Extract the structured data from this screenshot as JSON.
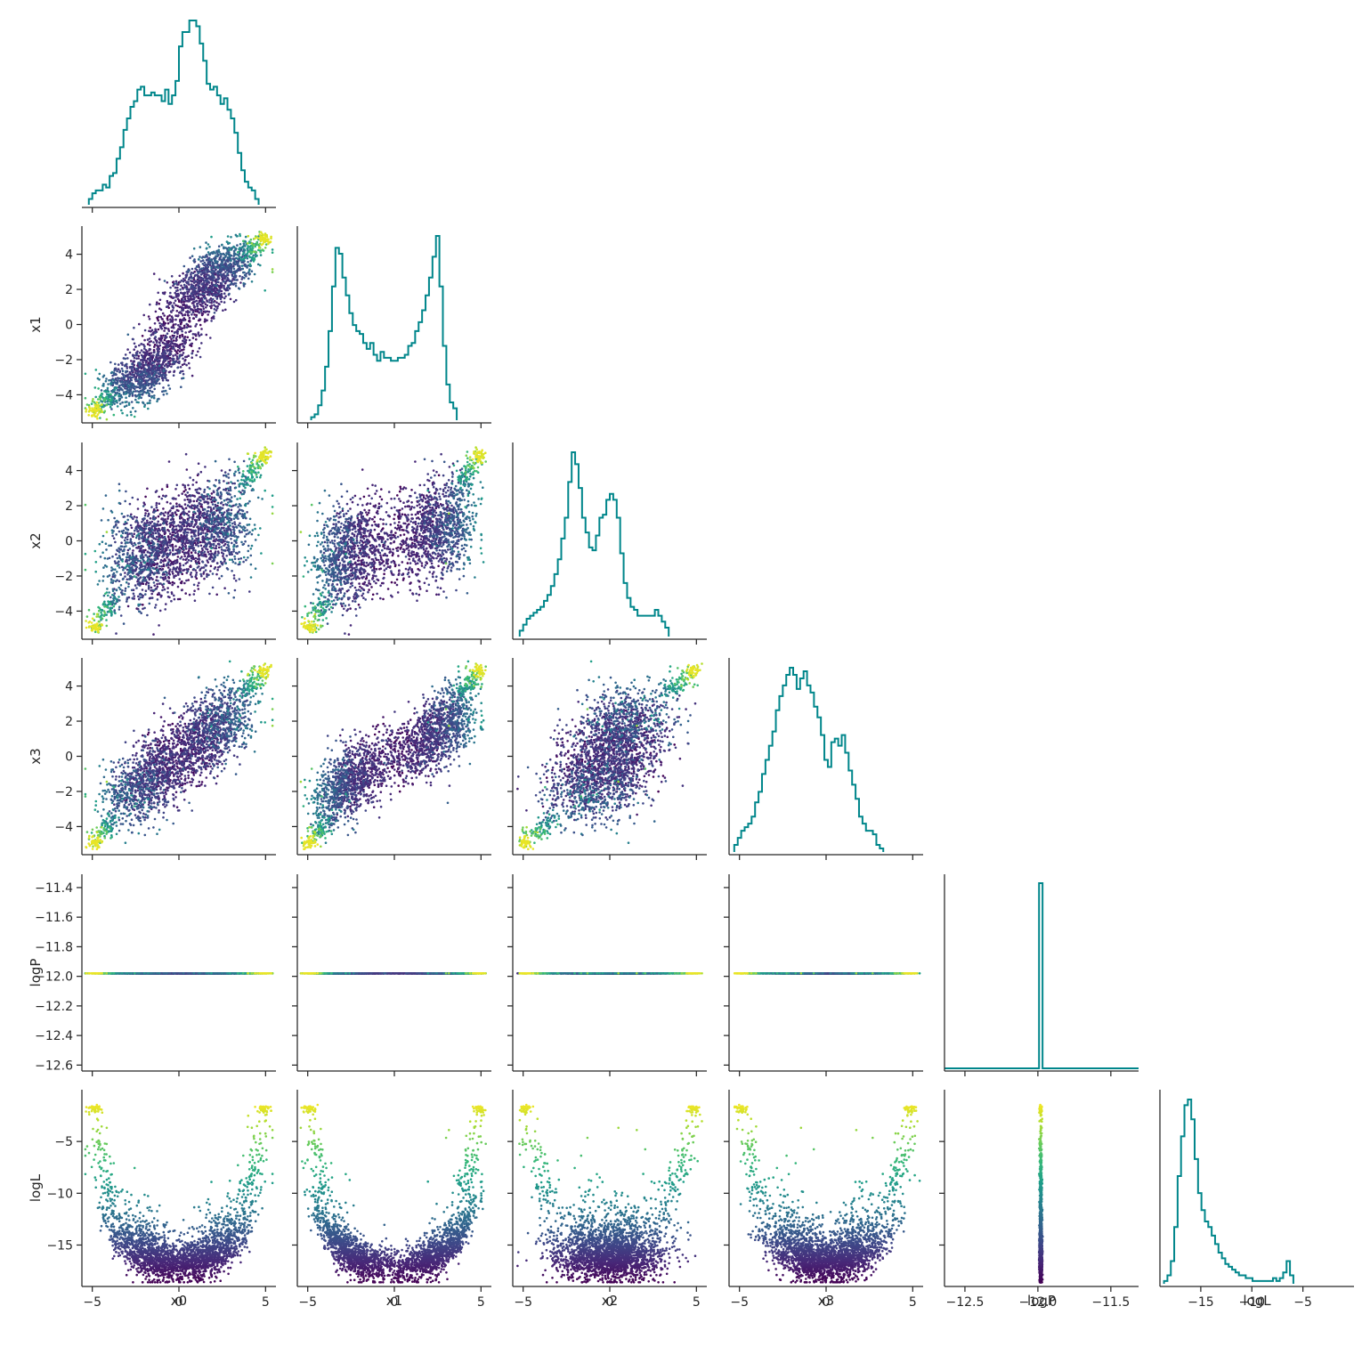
{
  "chart_data": {
    "type": "pairplot-corner",
    "variables": [
      "x0",
      "x1",
      "x2",
      "x3",
      "logP",
      "logL"
    ],
    "diagonal": "step-histogram",
    "off_diagonal": "scatter",
    "point_color_variable": "logL",
    "colormap": "viridis",
    "histogram_color": "#00868b",
    "grid": false,
    "axes": {
      "x0": {
        "range": [
          -5.6,
          5.6
        ],
        "ticks": [
          -5,
          0,
          5
        ],
        "tick_labels": [
          "−5",
          "0",
          "5"
        ]
      },
      "x1": {
        "range": [
          -5.6,
          5.6
        ],
        "ticks": [
          -4,
          -2,
          0,
          2,
          4
        ],
        "tick_labels": [
          "−4",
          "−2",
          "0",
          "2",
          "4"
        ],
        "x_ticks": [
          -5,
          0,
          5
        ],
        "x_tick_labels": [
          "−5",
          "0",
          "5"
        ]
      },
      "x2": {
        "range": [
          -5.6,
          5.6
        ],
        "ticks": [
          -4,
          -2,
          0,
          2,
          4
        ],
        "tick_labels": [
          "−4",
          "−2",
          "0",
          "2",
          "4"
        ],
        "x_ticks": [
          -5,
          0,
          5
        ],
        "x_tick_labels": [
          "−5",
          "0",
          "5"
        ]
      },
      "x3": {
        "range": [
          -5.6,
          5.6
        ],
        "ticks": [
          -4,
          -2,
          0,
          2,
          4
        ],
        "tick_labels": [
          "−4",
          "−2",
          "0",
          "2",
          "4"
        ],
        "x_ticks": [
          -5,
          0,
          5
        ],
        "x_tick_labels": [
          "−5",
          "0",
          "5"
        ]
      },
      "logP": {
        "range": [
          -12.64,
          -11.31
        ],
        "ticks": [
          -12.6,
          -12.4,
          -12.2,
          -12.0,
          -11.8,
          -11.6,
          -11.4
        ],
        "tick_labels": [
          "−12.6",
          "−12.4",
          "−12.2",
          "−12.0",
          "−11.8",
          "−11.6",
          "−11.4"
        ],
        "x_ticks": [
          -12.5,
          -12.0,
          -11.5
        ],
        "x_tick_labels": [
          "−12.5",
          "−12.0",
          "−11.5"
        ]
      },
      "logL": {
        "range": [
          -19.0,
          0.0
        ],
        "ticks": [
          -15,
          -10,
          -5
        ],
        "tick_labels": [
          "−15",
          "−10",
          "−5"
        ]
      }
    },
    "logP_value": -11.98,
    "histograms": {
      "x0": {
        "bin_start": -5.2,
        "bin_width": 0.2,
        "counts": [
          2,
          4,
          5,
          5,
          7,
          6,
          10,
          11,
          16,
          20,
          26,
          30,
          34,
          36,
          40,
          41,
          38,
          38,
          39,
          38,
          38,
          36,
          40,
          35,
          38,
          43,
          55,
          60,
          60,
          64,
          64,
          62,
          56,
          50,
          42,
          40,
          41,
          38,
          35,
          37,
          33,
          30,
          25,
          18,
          12,
          8,
          6,
          5,
          2
        ]
      },
      "x1": {
        "bin_start": -4.8,
        "bin_width": 0.2,
        "counts": [
          1,
          2,
          5,
          10,
          18,
          30,
          45,
          58,
          56,
          48,
          42,
          36,
          32,
          30,
          29,
          26,
          24,
          26,
          22,
          20,
          23,
          21,
          21,
          20,
          20,
          21,
          21,
          22,
          25,
          26,
          30,
          33,
          37,
          42,
          48,
          55,
          62,
          45,
          25,
          12,
          6,
          4
        ]
      },
      "x2": {
        "bin_start": -5.2,
        "bin_width": 0.2,
        "counts": [
          2,
          4,
          6,
          7,
          8,
          9,
          10,
          12,
          14,
          17,
          21,
          26,
          33,
          40,
          52,
          62,
          58,
          50,
          40,
          35,
          30,
          29,
          34,
          40,
          41,
          46,
          48,
          46,
          40,
          28,
          18,
          13,
          10,
          9,
          7,
          7,
          7,
          7,
          7,
          9,
          7,
          5,
          3
        ]
      },
      "x3": {
        "bin_start": -5.3,
        "bin_width": 0.2,
        "counts": [
          2,
          4,
          6,
          7,
          8,
          10,
          14,
          17,
          22,
          26,
          30,
          34,
          40,
          44,
          47,
          50,
          52,
          50,
          46,
          49,
          51,
          47,
          45,
          41,
          38,
          33,
          26,
          24,
          31,
          32,
          30,
          33,
          28,
          23,
          19,
          15,
          10,
          8,
          6,
          6,
          5,
          2,
          1
        ]
      },
      "logL": {
        "bin_start": -18.6,
        "bin_width": 0.3333,
        "counts": [
          1,
          3,
          8,
          20,
          38,
          52,
          63,
          65,
          58,
          44,
          32,
          26,
          22,
          20,
          17,
          14,
          11,
          9,
          7,
          6,
          5,
          4,
          3,
          3,
          2,
          2,
          1,
          1,
          1,
          1,
          1,
          1,
          2,
          1,
          2,
          4,
          8,
          3
        ]
      }
    }
  }
}
